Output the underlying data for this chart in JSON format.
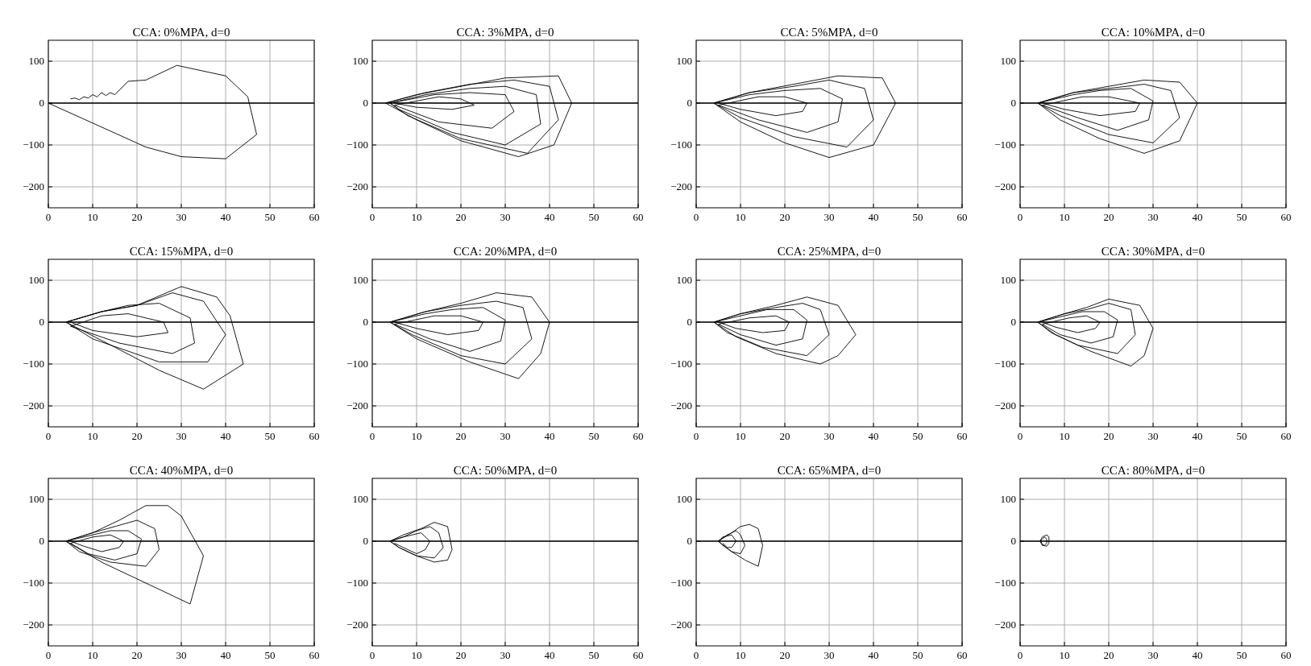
{
  "chart_data": [
    {
      "type": "line",
      "title": "CCA: 0%MPA, d=0",
      "xlim": [
        0,
        60
      ],
      "ylim": [
        -250,
        150
      ],
      "xticks": [
        0,
        10,
        20,
        30,
        40,
        50,
        60
      ],
      "yticks": [
        -200,
        -100,
        0,
        100
      ],
      "grid": true,
      "ref_lines": [
        {
          "axis": "y",
          "value": 0,
          "color": "#000000"
        }
      ],
      "series": [
        {
          "color": "#000000",
          "x": [
            5,
            6,
            7,
            8,
            9,
            10,
            11,
            12,
            13,
            14,
            15,
            18,
            22,
            29,
            40,
            45,
            47,
            40,
            30,
            22,
            0
          ],
          "values": [
            10,
            12,
            8,
            15,
            12,
            20,
            15,
            25,
            18,
            25,
            20,
            52,
            55,
            90,
            65,
            15,
            -75,
            -133,
            -128,
            -105,
            0
          ]
        }
      ]
    },
    {
      "type": "line",
      "title": "CCA: 3%MPA, d=0",
      "xlim": [
        0,
        60
      ],
      "ylim": [
        -250,
        150
      ],
      "xticks": [
        0,
        10,
        20,
        30,
        40,
        50,
        60
      ],
      "yticks": [
        -200,
        -100,
        0,
        100
      ],
      "grid": true,
      "ref_lines": [
        {
          "axis": "y",
          "value": 0,
          "color": "#000000"
        }
      ],
      "series": [
        {
          "color": "#000000",
          "x": [
            3,
            10,
            20,
            30,
            42,
            45,
            41,
            33,
            20,
            10,
            3,
            12,
            22,
            32,
            40,
            42,
            35,
            20,
            8,
            4,
            12,
            22,
            30,
            37,
            38,
            30,
            18,
            6,
            4,
            14,
            22,
            30,
            32,
            27,
            15,
            5,
            15,
            20,
            23,
            18,
            10,
            5
          ],
          "values": [
            0,
            20,
            40,
            60,
            65,
            0,
            -100,
            -128,
            -90,
            -40,
            0,
            25,
            45,
            55,
            40,
            -40,
            -120,
            -85,
            -30,
            0,
            20,
            35,
            40,
            20,
            -50,
            -100,
            -70,
            -15,
            0,
            20,
            25,
            20,
            -20,
            -60,
            -45,
            -5,
            15,
            10,
            -5,
            -15,
            -10,
            0
          ]
        }
      ]
    },
    {
      "type": "line",
      "title": "CCA: 5%MPA, d=0",
      "xlim": [
        0,
        60
      ],
      "ylim": [
        -250,
        150
      ],
      "xticks": [
        0,
        10,
        20,
        30,
        40,
        50,
        60
      ],
      "yticks": [
        -200,
        -100,
        0,
        100
      ],
      "grid": true,
      "ref_lines": [
        {
          "axis": "y",
          "value": 0,
          "color": "#000000"
        }
      ],
      "series": [
        {
          "color": "#000000",
          "x": [
            4,
            12,
            22,
            32,
            42,
            45,
            40,
            30,
            20,
            10,
            4,
            12,
            22,
            30,
            38,
            40,
            34,
            22,
            10,
            4,
            12,
            20,
            28,
            33,
            32,
            25,
            14,
            5,
            14,
            20,
            25,
            24,
            18,
            10,
            5
          ],
          "values": [
            0,
            25,
            45,
            65,
            60,
            0,
            -100,
            -130,
            -95,
            -45,
            0,
            25,
            40,
            55,
            35,
            -40,
            -105,
            -80,
            -35,
            0,
            20,
            30,
            35,
            10,
            -45,
            -70,
            -40,
            -5,
            15,
            15,
            0,
            -20,
            -30,
            -15,
            0
          ]
        }
      ]
    },
    {
      "type": "line",
      "title": "CCA: 10%MPA, d=0",
      "xlim": [
        0,
        60
      ],
      "ylim": [
        -250,
        150
      ],
      "xticks": [
        0,
        10,
        20,
        30,
        40,
        50,
        60
      ],
      "yticks": [
        -200,
        -100,
        0,
        100
      ],
      "grid": true,
      "ref_lines": [
        {
          "axis": "y",
          "value": 0,
          "color": "#000000"
        }
      ],
      "series": [
        {
          "color": "#000000",
          "x": [
            4,
            12,
            20,
            28,
            36,
            40,
            36,
            28,
            18,
            9,
            4,
            12,
            20,
            28,
            34,
            36,
            30,
            20,
            9,
            4,
            12,
            18,
            25,
            30,
            29,
            22,
            13,
            5,
            14,
            20,
            27,
            26,
            18,
            10,
            5
          ],
          "values": [
            0,
            25,
            40,
            55,
            50,
            0,
            -90,
            -120,
            -85,
            -40,
            0,
            25,
            35,
            45,
            30,
            -35,
            -95,
            -75,
            -30,
            0,
            20,
            30,
            35,
            5,
            -40,
            -65,
            -35,
            -5,
            15,
            15,
            0,
            -20,
            -30,
            -15,
            0
          ]
        }
      ]
    },
    {
      "type": "line",
      "title": "CCA: 15%MPA, d=0",
      "xlim": [
        0,
        60
      ],
      "ylim": [
        -250,
        150
      ],
      "xticks": [
        0,
        10,
        20,
        30,
        40,
        50,
        60
      ],
      "yticks": [
        -200,
        -100,
        0,
        100
      ],
      "grid": true,
      "ref_lines": [
        {
          "axis": "y",
          "value": 0,
          "color": "#000000"
        }
      ],
      "series": [
        {
          "color": "#000000",
          "x": [
            4,
            12,
            20,
            30,
            38,
            41,
            44,
            35,
            25,
            15,
            4,
            12,
            20,
            28,
            35,
            40,
            36,
            25,
            10,
            4,
            12,
            18,
            25,
            32,
            33,
            28,
            16,
            5,
            12,
            18,
            26,
            27,
            20,
            10,
            5
          ],
          "values": [
            0,
            25,
            40,
            85,
            60,
            15,
            -100,
            -160,
            -115,
            -60,
            0,
            25,
            40,
            70,
            50,
            -30,
            -95,
            -95,
            -40,
            0,
            25,
            40,
            45,
            10,
            -50,
            -75,
            -50,
            -10,
            15,
            20,
            0,
            -25,
            -35,
            -20,
            0
          ]
        }
      ]
    },
    {
      "type": "line",
      "title": "CCA: 20%MPA, d=0",
      "xlim": [
        0,
        60
      ],
      "ylim": [
        -250,
        150
      ],
      "xticks": [
        0,
        10,
        20,
        30,
        40,
        50,
        60
      ],
      "yticks": [
        -200,
        -100,
        0,
        100
      ],
      "grid": true,
      "ref_lines": [
        {
          "axis": "y",
          "value": 0,
          "color": "#000000"
        }
      ],
      "series": [
        {
          "color": "#000000",
          "x": [
            4,
            12,
            20,
            28,
            36,
            40,
            38,
            33,
            22,
            10,
            4,
            12,
            20,
            28,
            34,
            36,
            30,
            20,
            9,
            4,
            12,
            18,
            25,
            30,
            29,
            22,
            13,
            5,
            14,
            20,
            25,
            24,
            17,
            10,
            5
          ],
          "values": [
            0,
            25,
            45,
            70,
            60,
            0,
            -75,
            -135,
            -95,
            -40,
            0,
            25,
            40,
            50,
            35,
            -40,
            -100,
            -80,
            -30,
            0,
            20,
            30,
            35,
            5,
            -45,
            -70,
            -40,
            -5,
            15,
            15,
            0,
            -20,
            -30,
            -15,
            0
          ]
        }
      ]
    },
    {
      "type": "line",
      "title": "CCA: 25%MPA, d=0",
      "xlim": [
        0,
        60
      ],
      "ylim": [
        -250,
        150
      ],
      "xticks": [
        0,
        10,
        20,
        30,
        40,
        50,
        60
      ],
      "yticks": [
        -200,
        -100,
        0,
        100
      ],
      "grid": true,
      "ref_lines": [
        {
          "axis": "y",
          "value": 0,
          "color": "#000000"
        }
      ],
      "series": [
        {
          "color": "#000000",
          "x": [
            4,
            10,
            18,
            25,
            32,
            36,
            32,
            28,
            18,
            9,
            4,
            10,
            18,
            24,
            28,
            30,
            25,
            15,
            7,
            4,
            10,
            16,
            22,
            25,
            24,
            18,
            10,
            5,
            12,
            18,
            21,
            20,
            15,
            9,
            5
          ],
          "values": [
            0,
            20,
            40,
            60,
            40,
            -30,
            -80,
            -100,
            -75,
            -35,
            0,
            20,
            35,
            45,
            30,
            -30,
            -80,
            -60,
            -25,
            0,
            15,
            30,
            30,
            5,
            -40,
            -55,
            -30,
            -5,
            10,
            15,
            0,
            -20,
            -25,
            -15,
            0
          ]
        }
      ]
    },
    {
      "type": "line",
      "title": "CCA: 30%MPA, d=0",
      "xlim": [
        0,
        60
      ],
      "ylim": [
        -250,
        150
      ],
      "xticks": [
        0,
        10,
        20,
        30,
        40,
        50,
        60
      ],
      "yticks": [
        -200,
        -100,
        0,
        100
      ],
      "grid": true,
      "ref_lines": [
        {
          "axis": "y",
          "value": 0,
          "color": "#000000"
        }
      ],
      "series": [
        {
          "color": "#000000",
          "x": [
            4,
            10,
            15,
            20,
            27,
            30,
            28,
            25,
            16,
            8,
            4,
            10,
            15,
            20,
            25,
            26,
            22,
            13,
            7,
            4,
            10,
            14,
            19,
            22,
            21,
            16,
            9,
            5,
            11,
            15,
            18,
            17,
            13,
            8,
            5
          ],
          "values": [
            0,
            20,
            35,
            55,
            40,
            -15,
            -80,
            -105,
            -70,
            -30,
            0,
            20,
            30,
            45,
            30,
            -30,
            -75,
            -55,
            -25,
            0,
            15,
            25,
            25,
            5,
            -35,
            -50,
            -30,
            -5,
            10,
            15,
            0,
            -15,
            -25,
            -12,
            0
          ]
        }
      ]
    },
    {
      "type": "line",
      "title": "CCA: 40%MPA, d=0",
      "xlim": [
        0,
        60
      ],
      "ylim": [
        -250,
        150
      ],
      "xticks": [
        0,
        10,
        20,
        30,
        40,
        50,
        60
      ],
      "yticks": [
        -200,
        -100,
        0,
        100
      ],
      "grid": true,
      "ref_lines": [
        {
          "axis": "y",
          "value": 0,
          "color": "#000000"
        }
      ],
      "series": [
        {
          "color": "#000000",
          "x": [
            4,
            10,
            16,
            22,
            27,
            30,
            35,
            32,
            22,
            12,
            4,
            10,
            15,
            20,
            24,
            25,
            22,
            14,
            7,
            4,
            10,
            14,
            18,
            21,
            20,
            15,
            9,
            5,
            10,
            14,
            17,
            16,
            12,
            8,
            5
          ],
          "values": [
            0,
            20,
            50,
            85,
            85,
            60,
            -35,
            -150,
            -100,
            -50,
            0,
            20,
            35,
            50,
            30,
            -20,
            -60,
            -50,
            -25,
            0,
            15,
            25,
            25,
            5,
            -30,
            -45,
            -30,
            -5,
            10,
            15,
            0,
            -15,
            -25,
            -12,
            0
          ]
        }
      ]
    },
    {
      "type": "line",
      "title": "CCA: 50%MPA, d=0",
      "xlim": [
        0,
        60
      ],
      "ylim": [
        -250,
        150
      ],
      "xticks": [
        0,
        10,
        20,
        30,
        40,
        50,
        60
      ],
      "yticks": [
        -200,
        -100,
        0,
        100
      ],
      "grid": true,
      "ref_lines": [
        {
          "axis": "y",
          "value": 0,
          "color": "#000000"
        }
      ],
      "series": [
        {
          "color": "#000000",
          "x": [
            4,
            7,
            11,
            14,
            17,
            18,
            17,
            14,
            10,
            6,
            4,
            7,
            10,
            13,
            15,
            16,
            14,
            10,
            6,
            4,
            7,
            9,
            11,
            13,
            12,
            10,
            7,
            5
          ],
          "values": [
            0,
            15,
            30,
            45,
            35,
            -20,
            -45,
            -50,
            -35,
            -15,
            0,
            10,
            25,
            35,
            20,
            -15,
            -40,
            -35,
            -15,
            0,
            10,
            15,
            20,
            0,
            -20,
            -30,
            -15,
            -5
          ]
        }
      ]
    },
    {
      "type": "line",
      "title": "CCA: 65%MPA, d=0",
      "xlim": [
        0,
        60
      ],
      "ylim": [
        -250,
        150
      ],
      "xticks": [
        0,
        10,
        20,
        30,
        40,
        50,
        60
      ],
      "yticks": [
        -200,
        -100,
        0,
        100
      ],
      "grid": true,
      "ref_lines": [
        {
          "axis": "y",
          "value": 0,
          "color": "#000000"
        }
      ],
      "series": [
        {
          "color": "#000000",
          "x": [
            5,
            8,
            10,
            12,
            14,
            15,
            14,
            11,
            8,
            5,
            5,
            7,
            9,
            10,
            11,
            10,
            8,
            6,
            5,
            6,
            8,
            9,
            8,
            7,
            6
          ],
          "values": [
            0,
            20,
            35,
            40,
            30,
            -10,
            -60,
            -45,
            -25,
            0,
            0,
            15,
            25,
            15,
            -10,
            -30,
            -25,
            -10,
            0,
            10,
            15,
            0,
            -15,
            -15,
            -5
          ]
        }
      ]
    },
    {
      "type": "line",
      "title": "CCA: 80%MPA, d=0",
      "xlim": [
        0,
        60
      ],
      "ylim": [
        -250,
        150
      ],
      "xticks": [
        0,
        10,
        20,
        30,
        40,
        50,
        60
      ],
      "yticks": [
        -200,
        -100,
        0,
        100
      ],
      "grid": true,
      "ref_lines": [
        {
          "axis": "y",
          "value": 0,
          "color": "#000000"
        }
      ],
      "series": [
        {
          "color": "#000000",
          "x": [
            4.5,
            5,
            6,
            6.5,
            6.5,
            6,
            5,
            4.5,
            5,
            5.5,
            6,
            6,
            5.5,
            5,
            4.7
          ],
          "values": [
            0,
            10,
            15,
            10,
            -5,
            -12,
            -10,
            0,
            5,
            10,
            5,
            -5,
            -10,
            -8,
            0
          ]
        }
      ]
    }
  ]
}
